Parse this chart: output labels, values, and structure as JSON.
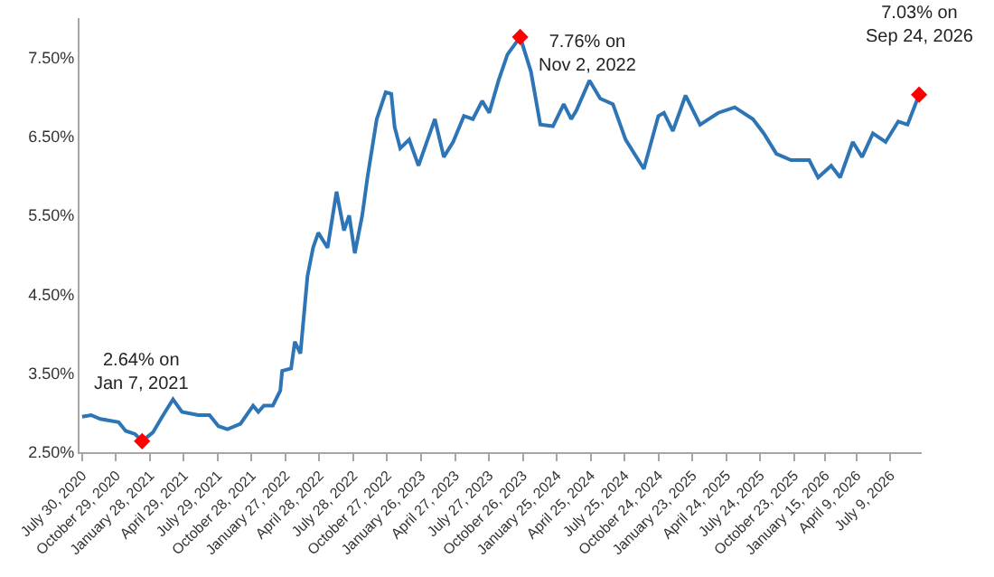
{
  "chart_data": {
    "type": "line",
    "xlim": [
      "2020-07-23",
      "2026-10-01"
    ],
    "xticks": [
      {
        "value": "2020-07-30",
        "label": "July 30, 2020"
      },
      {
        "value": "2020-10-29",
        "label": "October 29, 2020"
      },
      {
        "value": "2021-01-28",
        "label": "January 28, 2021"
      },
      {
        "value": "2021-04-29",
        "label": "April 29, 2021"
      },
      {
        "value": "2021-07-29",
        "label": "July 29, 2021"
      },
      {
        "value": "2021-10-28",
        "label": "October 28, 2021"
      },
      {
        "value": "2022-01-27",
        "label": "January 27, 2022"
      },
      {
        "value": "2022-04-28",
        "label": "April 28, 2022"
      },
      {
        "value": "2022-07-28",
        "label": "July 28, 2022"
      },
      {
        "value": "2022-10-27",
        "label": "October 27, 2022"
      },
      {
        "value": "2023-01-26",
        "label": "January 26, 2023"
      },
      {
        "value": "2023-04-27",
        "label": "April 27, 2023"
      },
      {
        "value": "2023-07-27",
        "label": "July 27, 2023"
      },
      {
        "value": "2023-10-26",
        "label": "October 26, 2023"
      },
      {
        "value": "2024-01-25",
        "label": "January 25, 2024"
      },
      {
        "value": "2024-04-25",
        "label": "April 25, 2024"
      },
      {
        "value": "2024-07-25",
        "label": "July 25, 2024"
      },
      {
        "value": "2024-10-24",
        "label": "October 24, 2024"
      },
      {
        "value": "2025-01-23",
        "label": "January 23, 2025"
      },
      {
        "value": "2025-04-24",
        "label": "April 24, 2025"
      },
      {
        "value": "2025-07-24",
        "label": "July 24, 2025"
      },
      {
        "value": "2025-10-23",
        "label": "October 23, 2025"
      },
      {
        "value": "2026-01-15",
        "label": "January 15, 2026"
      },
      {
        "value": "2026-04-09",
        "label": "April 9, 2026"
      },
      {
        "value": "2026-07-09",
        "label": "July 9, 2026"
      }
    ],
    "ylim": [
      2.5,
      8.0
    ],
    "yticks": [
      {
        "value": 2.5,
        "label": "2.50%"
      },
      {
        "value": 3.5,
        "label": "3.50%"
      },
      {
        "value": 4.5,
        "label": "4.50%"
      },
      {
        "value": 5.5,
        "label": "5.50%"
      },
      {
        "value": 6.5,
        "label": "6.50%"
      },
      {
        "value": 7.5,
        "label": "7.50%"
      }
    ],
    "line_style": "solid",
    "series": [
      {
        "color": "#2e75b6",
        "x": [
          "2020-07-30",
          "2020-08-23",
          "2020-09-17",
          "2020-11-05",
          "2020-11-24",
          "2020-12-19",
          "2021-01-07",
          "2021-02-05",
          "2021-03-02",
          "2021-03-31",
          "2021-04-24",
          "2021-06-07",
          "2021-07-07",
          "2021-07-31",
          "2021-08-24",
          "2021-09-28",
          "2021-11-01",
          "2021-11-15",
          "2021-11-30",
          "2021-12-24",
          "2022-01-13",
          "2022-01-18",
          "2022-02-11",
          "2022-02-21",
          "2022-03-08",
          "2022-03-27",
          "2022-04-11",
          "2022-04-25",
          "2022-05-20",
          "2022-06-13",
          "2022-07-03",
          "2022-07-17",
          "2022-08-01",
          "2022-08-21",
          "2022-09-04",
          "2022-09-29",
          "2022-10-23",
          "2022-11-07",
          "2022-11-16",
          "2022-12-01",
          "2022-12-25",
          "2023-01-19",
          "2023-03-04",
          "2023-03-28",
          "2023-04-22",
          "2023-05-21",
          "2023-06-14",
          "2023-07-09",
          "2023-07-28",
          "2023-08-22",
          "2023-09-15",
          "2023-10-19",
          "2023-11-17",
          "2023-12-12",
          "2024-01-15",
          "2024-02-13",
          "2024-03-04",
          "2024-03-18",
          "2024-04-22",
          "2024-05-21",
          "2024-06-24",
          "2024-07-28",
          "2024-09-15",
          "2024-10-24",
          "2024-11-08",
          "2024-12-02",
          "2025-01-05",
          "2025-02-13",
          "2025-04-03",
          "2025-05-17",
          "2025-07-05",
          "2025-08-03",
          "2025-09-06",
          "2025-10-15",
          "2025-12-03",
          "2025-12-27",
          "2026-01-31",
          "2026-02-24",
          "2026-03-30",
          "2026-04-24",
          "2026-05-23",
          "2026-06-26",
          "2026-07-30",
          "2026-08-24",
          "2026-09-24"
        ],
        "values": [
          2.95,
          2.97,
          2.92,
          2.88,
          2.77,
          2.73,
          2.64,
          2.75,
          2.95,
          3.17,
          3.01,
          2.97,
          2.97,
          2.83,
          2.79,
          2.86,
          3.09,
          3.01,
          3.09,
          3.09,
          3.28,
          3.53,
          3.56,
          3.9,
          3.75,
          4.73,
          5.09,
          5.28,
          5.09,
          5.8,
          5.31,
          5.5,
          5.02,
          5.5,
          5.98,
          6.72,
          7.06,
          7.04,
          6.62,
          6.35,
          6.46,
          6.13,
          6.72,
          6.24,
          6.43,
          6.76,
          6.72,
          6.95,
          6.8,
          7.21,
          7.54,
          7.76,
          7.32,
          6.65,
          6.63,
          6.91,
          6.72,
          6.83,
          7.21,
          6.98,
          6.91,
          6.46,
          6.09,
          6.76,
          6.8,
          6.57,
          7.02,
          6.65,
          6.8,
          6.87,
          6.72,
          6.54,
          6.28,
          6.2,
          6.2,
          5.98,
          6.13,
          5.98,
          6.43,
          6.24,
          6.54,
          6.43,
          6.69,
          6.65,
          7.03
        ]
      },
      {
        "type": "scatter",
        "color": "#ff0000",
        "marker": "diamond",
        "x": [
          "2021-01-07",
          "2023-10-19",
          "2026-09-24"
        ],
        "values": [
          2.64,
          7.76,
          7.03
        ]
      }
    ],
    "annotations": [
      {
        "text": "2.64% on\nJan 7, 2021",
        "x": "2021-01-07",
        "y": 2.64
      },
      {
        "text": "7.76% on\nNov 2, 2022",
        "x": "2023-10-19",
        "y": 7.76
      },
      {
        "text": "7.03% on\nSep 24, 2026",
        "x": "2026-09-24",
        "y": 7.03
      }
    ]
  }
}
